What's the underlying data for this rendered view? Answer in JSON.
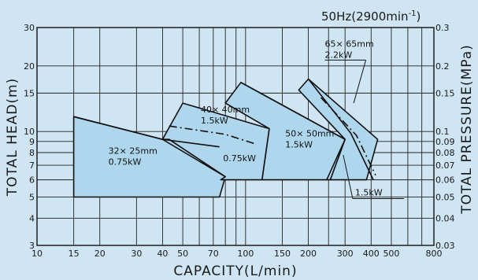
{
  "chart_data": {
    "type": "area",
    "frequency_label": "50Hz(2900min",
    "frequency_sup": "-1",
    "frequency_close": ")",
    "xlabel": "CAPACITY(L/min)",
    "ylabel": "TOTAL HEAD(m)",
    "y2label": "TOTAL PRESSURE(MPa)",
    "xscale": "log",
    "yscale": "log",
    "xlim": [
      10,
      800
    ],
    "ylim": [
      3,
      30
    ],
    "grid": true,
    "x_gridlines": [
      10,
      15,
      20,
      30,
      40,
      50,
      60,
      70,
      80,
      90,
      100,
      150,
      200,
      250,
      300,
      400,
      500,
      600,
      700,
      800
    ],
    "y_gridlines": [
      3,
      4,
      5,
      6,
      7,
      8,
      9,
      10,
      15,
      20,
      30
    ],
    "x_ticks": [
      {
        "value": 10,
        "label": "10"
      },
      {
        "value": 15,
        "label": "15"
      },
      {
        "value": 20,
        "label": "20"
      },
      {
        "value": 30,
        "label": "30"
      },
      {
        "value": 40,
        "label": "40"
      },
      {
        "value": 50,
        "label": "50"
      },
      {
        "value": 70,
        "label": "70"
      },
      {
        "value": 100,
        "label": "100"
      },
      {
        "value": 150,
        "label": "150"
      },
      {
        "value": 200,
        "label": "200"
      },
      {
        "value": 300,
        "label": "300"
      },
      {
        "value": 400,
        "label": "400"
      },
      {
        "value": 500,
        "label": "500"
      },
      {
        "value": 800,
        "label": "800"
      }
    ],
    "y_ticks": [
      {
        "value": 3,
        "label": "3"
      },
      {
        "value": 4,
        "label": "4"
      },
      {
        "value": 5,
        "label": "5"
      },
      {
        "value": 6,
        "label": "6"
      },
      {
        "value": 7,
        "label": "7"
      },
      {
        "value": 8,
        "label": "8"
      },
      {
        "value": 9,
        "label": "9"
      },
      {
        "value": 10,
        "label": "10"
      },
      {
        "value": 15,
        "label": "15"
      },
      {
        "value": 20,
        "label": "20"
      },
      {
        "value": 30,
        "label": "30"
      }
    ],
    "y2_ticks": [
      {
        "value": 3,
        "label": "0.03"
      },
      {
        "value": 4,
        "label": "0.04"
      },
      {
        "value": 5,
        "label": "0.05"
      },
      {
        "value": 6,
        "label": "0.06"
      },
      {
        "value": 7,
        "label": "0.07"
      },
      {
        "value": 8,
        "label": "0.08"
      },
      {
        "value": 9,
        "label": "0.09"
      },
      {
        "value": 10,
        "label": "0.1"
      },
      {
        "value": 15,
        "label": "0.15"
      },
      {
        "value": 20,
        "label": "0.2"
      },
      {
        "value": 30,
        "label": "0.3"
      }
    ],
    "fill_color": "#aed7ee",
    "line_color": "#111111",
    "background_color": "#cfe5f3",
    "regions": [
      {
        "name": "32x25mm",
        "polygon": [
          [
            15,
            5
          ],
          [
            15,
            11.7
          ],
          [
            40,
            9.2
          ],
          [
            43,
            9.2
          ],
          [
            80,
            6.2
          ],
          [
            75,
            5
          ]
        ]
      },
      {
        "name": "40x40mm",
        "polygon": [
          [
            40,
            9.2
          ],
          [
            43,
            9.2
          ],
          [
            80,
            6.2
          ],
          [
            76,
            6
          ],
          [
            120,
            6
          ],
          [
            130,
            10.3
          ],
          [
            50,
            13.5
          ]
        ]
      },
      {
        "name": "50x50mm",
        "polygon": [
          [
            120,
            6
          ],
          [
            130,
            10.3
          ],
          [
            80,
            13.5
          ],
          [
            95,
            16.8
          ],
          [
            300,
            9.2
          ],
          [
            255,
            6
          ]
        ]
      },
      {
        "name": "65x65mm",
        "polygon": [
          [
            255,
            6
          ],
          [
            300,
            9.2
          ],
          [
            180,
            15.5
          ],
          [
            200,
            17.4
          ],
          [
            430,
            9.2
          ],
          [
            380,
            6
          ]
        ]
      }
    ],
    "curves": [
      {
        "name": "32x25-0.75kW",
        "style": "solid",
        "points": [
          [
            15,
            11.7
          ],
          [
            40,
            9.2
          ],
          [
            80,
            6.2
          ]
        ]
      },
      {
        "name": "40x40-0.75kW",
        "style": "solid",
        "points": [
          [
            40,
            9.2
          ],
          [
            75,
            8.5
          ]
        ]
      },
      {
        "name": "40x40-1.5kW",
        "style": "dashed",
        "points": [
          [
            43,
            10.6
          ],
          [
            80,
            9.7
          ],
          [
            110,
            8.8
          ]
        ]
      },
      {
        "name": "50x50-1.5kW",
        "style": "solid",
        "points": [
          [
            95,
            16.8
          ],
          [
            300,
            9.2
          ]
        ]
      },
      {
        "name": "50x50-vertical",
        "style": "solid",
        "points": [
          [
            245,
            6
          ],
          [
            300,
            9.2
          ]
        ]
      },
      {
        "name": "65x65-2.2kW",
        "style": "dashed",
        "points": [
          [
            230,
            14.3
          ],
          [
            340,
            9.6
          ],
          [
            420,
            6.3
          ]
        ]
      },
      {
        "name": "65x65-1.5kW",
        "style": "solid",
        "points": [
          [
            200,
            17.4
          ],
          [
            320,
            9.8
          ],
          [
            410,
            6
          ]
        ]
      }
    ],
    "region_labels": [
      {
        "lines": [
          "32× 25mm",
          "0.75kW"
        ],
        "x": 22,
        "y": 7.9
      },
      {
        "lines": [
          "40× 40mm",
          "1.5kW"
        ],
        "x": 61,
        "y": 12.2
      },
      {
        "lines": [
          "0.75kW"
        ],
        "x": 78,
        "y": 7.3
      },
      {
        "lines": [
          "50× 50mm",
          "1.5kW"
        ],
        "x": 155,
        "y": 9.5
      },
      {
        "lines": [
          "65× 65mm",
          "2.2kW"
        ],
        "x": 240,
        "y": 24.5
      }
    ],
    "annotations": [
      {
        "text": "1.5kW",
        "x": 335,
        "y": 5.0
      }
    ]
  }
}
